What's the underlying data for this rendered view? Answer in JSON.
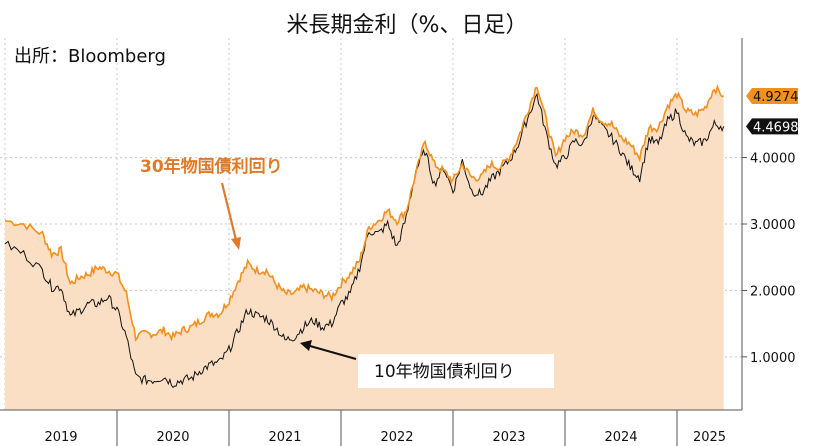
{
  "chart_data": {
    "type": "line",
    "title": "米長期金利（%、日足）",
    "source": "出所：Bloomberg",
    "x_labels": [
      "2019",
      "2020",
      "2021",
      "2022",
      "2023",
      "2024",
      "2025"
    ],
    "y_ticks": [
      "1.0000",
      "2.0000",
      "3.0000",
      "4.0000"
    ],
    "ylim": [
      0.2,
      5.8
    ],
    "grid": true,
    "series": [
      {
        "name": "30年物国債利回り",
        "color": "#f0901e",
        "last_label": "4.9274",
        "points": [
          [
            "2019-01",
            3.05
          ],
          [
            "2019-03",
            3.0
          ],
          [
            "2019-05",
            2.85
          ],
          [
            "2019-06",
            2.55
          ],
          [
            "2019-07",
            2.6
          ],
          [
            "2019-08",
            2.1
          ],
          [
            "2019-09",
            2.2
          ],
          [
            "2019-10",
            2.25
          ],
          [
            "2019-11",
            2.35
          ],
          [
            "2019-12",
            2.3
          ],
          [
            "2020-01",
            2.25
          ],
          [
            "2020-02",
            1.95
          ],
          [
            "2020-03",
            1.3
          ],
          [
            "2020-04",
            1.35
          ],
          [
            "2020-05",
            1.35
          ],
          [
            "2020-06",
            1.4
          ],
          [
            "2020-07",
            1.3
          ],
          [
            "2020-08",
            1.4
          ],
          [
            "2020-09",
            1.45
          ],
          [
            "2020-10",
            1.55
          ],
          [
            "2020-11",
            1.65
          ],
          [
            "2020-12",
            1.65
          ],
          [
            "2021-01",
            1.85
          ],
          [
            "2021-02",
            2.15
          ],
          [
            "2021-03",
            2.4
          ],
          [
            "2021-04",
            2.3
          ],
          [
            "2021-05",
            2.3
          ],
          [
            "2021-06",
            2.1
          ],
          [
            "2021-07",
            1.95
          ],
          [
            "2021-08",
            1.95
          ],
          [
            "2021-09",
            2.05
          ],
          [
            "2021-10",
            2.0
          ],
          [
            "2021-11",
            1.95
          ],
          [
            "2021-12",
            1.9
          ],
          [
            "2022-01",
            2.1
          ],
          [
            "2022-02",
            2.25
          ],
          [
            "2022-03",
            2.45
          ],
          [
            "2022-04",
            2.95
          ],
          [
            "2022-05",
            3.05
          ],
          [
            "2022-06",
            3.2
          ],
          [
            "2022-07",
            3.05
          ],
          [
            "2022-08",
            3.2
          ],
          [
            "2022-09",
            3.75
          ],
          [
            "2022-10",
            4.25
          ],
          [
            "2022-11",
            3.9
          ],
          [
            "2022-12",
            3.8
          ],
          [
            "2023-01",
            3.65
          ],
          [
            "2023-02",
            3.9
          ],
          [
            "2023-03",
            3.7
          ],
          [
            "2023-04",
            3.7
          ],
          [
            "2023-05",
            3.9
          ],
          [
            "2023-06",
            3.85
          ],
          [
            "2023-07",
            4.0
          ],
          [
            "2023-08",
            4.3
          ],
          [
            "2023-09",
            4.7
          ],
          [
            "2023-10",
            5.1
          ],
          [
            "2023-11",
            4.55
          ],
          [
            "2023-12",
            4.0
          ],
          [
            "2024-01",
            4.3
          ],
          [
            "2024-02",
            4.4
          ],
          [
            "2024-03",
            4.35
          ],
          [
            "2024-04",
            4.7
          ],
          [
            "2024-05",
            4.55
          ],
          [
            "2024-06",
            4.5
          ],
          [
            "2024-07",
            4.3
          ],
          [
            "2024-08",
            4.2
          ],
          [
            "2024-09",
            4.0
          ],
          [
            "2024-10",
            4.45
          ],
          [
            "2024-11",
            4.45
          ],
          [
            "2024-12",
            4.78
          ],
          [
            "2025-01",
            4.95
          ],
          [
            "2025-02",
            4.7
          ],
          [
            "2025-03",
            4.65
          ],
          [
            "2025-04",
            4.75
          ],
          [
            "2025-05",
            5.05
          ],
          [
            "2025-06",
            4.93
          ]
        ]
      },
      {
        "name": "10年物国債利回り",
        "color": "#111111",
        "last_label": "4.4698",
        "points": [
          [
            "2019-01",
            2.7
          ],
          [
            "2019-03",
            2.55
          ],
          [
            "2019-05",
            2.3
          ],
          [
            "2019-06",
            2.05
          ],
          [
            "2019-07",
            2.05
          ],
          [
            "2019-08",
            1.6
          ],
          [
            "2019-09",
            1.7
          ],
          [
            "2019-10",
            1.8
          ],
          [
            "2019-11",
            1.8
          ],
          [
            "2019-12",
            1.9
          ],
          [
            "2020-01",
            1.7
          ],
          [
            "2020-02",
            1.3
          ],
          [
            "2020-03",
            0.7
          ],
          [
            "2020-04",
            0.65
          ],
          [
            "2020-05",
            0.65
          ],
          [
            "2020-06",
            0.7
          ],
          [
            "2020-07",
            0.6
          ],
          [
            "2020-08",
            0.65
          ],
          [
            "2020-09",
            0.68
          ],
          [
            "2020-10",
            0.8
          ],
          [
            "2020-11",
            0.88
          ],
          [
            "2020-12",
            0.92
          ],
          [
            "2021-01",
            1.1
          ],
          [
            "2021-02",
            1.4
          ],
          [
            "2021-03",
            1.7
          ],
          [
            "2021-04",
            1.62
          ],
          [
            "2021-05",
            1.58
          ],
          [
            "2021-06",
            1.45
          ],
          [
            "2021-07",
            1.25
          ],
          [
            "2021-08",
            1.3
          ],
          [
            "2021-09",
            1.45
          ],
          [
            "2021-10",
            1.55
          ],
          [
            "2021-11",
            1.45
          ],
          [
            "2021-12",
            1.5
          ],
          [
            "2022-01",
            1.8
          ],
          [
            "2022-02",
            1.95
          ],
          [
            "2022-03",
            2.35
          ],
          [
            "2022-04",
            2.9
          ],
          [
            "2022-05",
            2.85
          ],
          [
            "2022-06",
            3.0
          ],
          [
            "2022-07",
            2.65
          ],
          [
            "2022-08",
            3.1
          ],
          [
            "2022-09",
            3.8
          ],
          [
            "2022-10",
            4.1
          ],
          [
            "2022-11",
            3.6
          ],
          [
            "2022-12",
            3.85
          ],
          [
            "2023-01",
            3.5
          ],
          [
            "2023-02",
            3.95
          ],
          [
            "2023-03",
            3.5
          ],
          [
            "2023-04",
            3.45
          ],
          [
            "2023-05",
            3.65
          ],
          [
            "2023-06",
            3.8
          ],
          [
            "2023-07",
            3.95
          ],
          [
            "2023-08",
            4.2
          ],
          [
            "2023-09",
            4.6
          ],
          [
            "2023-10",
            4.95
          ],
          [
            "2023-11",
            4.35
          ],
          [
            "2023-12",
            3.88
          ],
          [
            "2024-01",
            4.0
          ],
          [
            "2024-02",
            4.25
          ],
          [
            "2024-03",
            4.2
          ],
          [
            "2024-04",
            4.65
          ],
          [
            "2024-05",
            4.45
          ],
          [
            "2024-06",
            4.3
          ],
          [
            "2024-07",
            4.1
          ],
          [
            "2024-08",
            3.85
          ],
          [
            "2024-09",
            3.7
          ],
          [
            "2024-10",
            4.28
          ],
          [
            "2024-11",
            4.2
          ],
          [
            "2024-12",
            4.55
          ],
          [
            "2025-01",
            4.7
          ],
          [
            "2025-02",
            4.3
          ],
          [
            "2025-03",
            4.2
          ],
          [
            "2025-04",
            4.25
          ],
          [
            "2025-05",
            4.5
          ],
          [
            "2025-06",
            4.47
          ]
        ]
      }
    ],
    "annotations": [
      {
        "text": "30年物国債利回り",
        "color": "#e07a2a"
      },
      {
        "text": "10年物国債利回り",
        "color": "#111111"
      }
    ]
  }
}
